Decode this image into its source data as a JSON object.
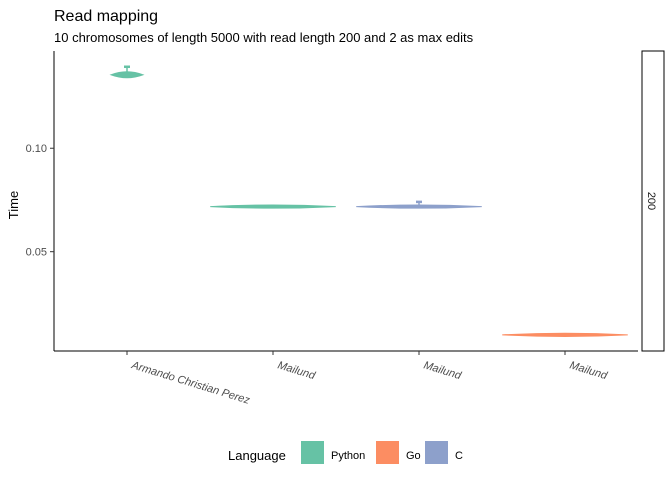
{
  "chart_data": {
    "type": "violin",
    "title": "Read mapping",
    "subtitle": "10 chromosomes of length 5000 with read length 200 and 2 as max edits",
    "xlabel": "",
    "ylabel": "Time",
    "ylim": [
      0.002,
      0.147
    ],
    "y_ticks": [
      0.05,
      0.1
    ],
    "y_tick_labels": [
      "0.05",
      "0.10"
    ],
    "categories": [
      "Armando Christian Perez",
      "Mailund",
      "Mailund",
      "Mailund"
    ],
    "facet_label": "200",
    "grid": false,
    "legend_position": "bottom",
    "legend_title": "Language",
    "series": [
      {
        "name": "Python",
        "color": "#66C2A5",
        "category_index": 0,
        "median": 0.1355,
        "min": 0.1345,
        "max": 0.1395
      },
      {
        "name": "Python",
        "color": "#66C2A5",
        "category_index": 1,
        "median": 0.0718,
        "min": 0.0712,
        "max": 0.0724
      },
      {
        "name": "C",
        "color": "#8DA0CB",
        "category_index": 2,
        "median": 0.0718,
        "min": 0.0712,
        "max": 0.0742
      },
      {
        "name": "Go",
        "color": "#FC8D62",
        "category_index": 3,
        "median": 0.0098,
        "min": 0.0093,
        "max": 0.0103
      }
    ],
    "legend": [
      {
        "label": "Python",
        "color": "#66C2A5"
      },
      {
        "label": "Go",
        "color": "#FC8D62"
      },
      {
        "label": "C",
        "color": "#8DA0CB"
      }
    ]
  }
}
